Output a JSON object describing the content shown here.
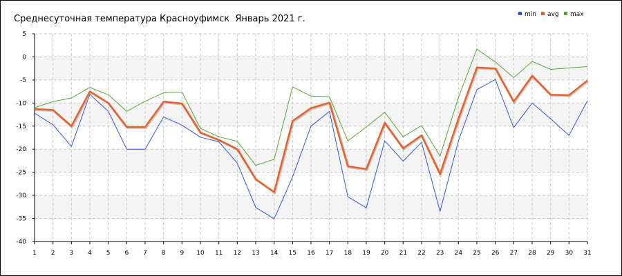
{
  "chart_data": {
    "type": "line",
    "title": "Среднесуточная температура Красноуфимск  Январь 2021 г.",
    "xlabel": "",
    "ylabel": "",
    "x": [
      1,
      2,
      3,
      4,
      5,
      6,
      7,
      8,
      9,
      10,
      11,
      12,
      13,
      14,
      15,
      16,
      17,
      18,
      19,
      20,
      21,
      22,
      23,
      24,
      25,
      26,
      27,
      28,
      29,
      30,
      31
    ],
    "ylim": [
      -40,
      5
    ],
    "yticks": [
      5,
      0,
      -5,
      -10,
      -15,
      -20,
      -25,
      -30,
      -35,
      -40
    ],
    "grid": true,
    "legend_position": "top-right",
    "series": [
      {
        "name": "min",
        "color": "#3355dd",
        "values": [
          -12.2,
          -14.7,
          -19.4,
          -8.1,
          -11.8,
          -20.0,
          -20.0,
          -13.0,
          -14.8,
          -17.4,
          -18.4,
          -23.0,
          -32.6,
          -35.1,
          -26.0,
          -15.0,
          -11.8,
          -30.3,
          -32.7,
          -18.2,
          -22.6,
          -18.5,
          -33.5,
          -18.2,
          -7.1,
          -4.9,
          -15.3,
          -10.0,
          -13.4,
          -17.0,
          -9.5
        ]
      },
      {
        "name": "avg",
        "color": "#e8602a",
        "values": [
          -11.3,
          -11.5,
          -15.0,
          -7.5,
          -10.0,
          -15.2,
          -15.2,
          -9.7,
          -10.1,
          -16.4,
          -18.0,
          -20.0,
          -26.5,
          -29.3,
          -13.9,
          -11.1,
          -9.9,
          -23.7,
          -24.3,
          -14.3,
          -19.8,
          -17.0,
          -25.4,
          -13.4,
          -2.3,
          -2.5,
          -9.7,
          -4.1,
          -8.2,
          -8.3,
          -5.1
        ]
      },
      {
        "name": "max",
        "color": "#55aa33",
        "values": [
          -11.0,
          -9.7,
          -8.9,
          -6.6,
          -8.2,
          -11.8,
          -9.6,
          -7.8,
          -7.6,
          -15.5,
          -17.3,
          -18.3,
          -23.5,
          -22.2,
          -6.5,
          -8.5,
          -8.6,
          -18.2,
          -15.2,
          -12.0,
          -17.3,
          -14.9,
          -21.5,
          -8.8,
          1.7,
          -1.1,
          -4.5,
          -1.0,
          -2.7,
          -2.4,
          -2.1
        ]
      }
    ]
  }
}
